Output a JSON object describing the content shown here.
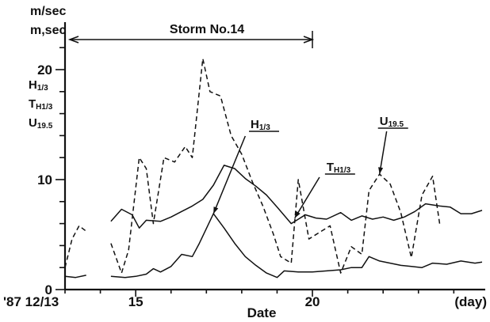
{
  "chart_data": {
    "type": "line",
    "title": "",
    "xlabel": "Date",
    "ylabel_lines": [
      "m/sec",
      "m,sec"
    ],
    "y_quantities": [
      {
        "main": "H",
        "sub": "1/3"
      },
      {
        "main": "T",
        "sub": "H1/3"
      },
      {
        "main": "U",
        "sub": "19.5"
      }
    ],
    "xlim": [
      13,
      24.8
    ],
    "ylim": [
      0,
      23
    ],
    "x_ticks": [
      {
        "value": 13,
        "label": "'87 12/13"
      },
      {
        "value": 15,
        "label": "15"
      },
      {
        "value": 20,
        "label": "20"
      },
      {
        "value": 24.8,
        "label": "(day)"
      }
    ],
    "y_ticks": [
      {
        "value": 0,
        "label": "0"
      },
      {
        "value": 10,
        "label": "10"
      },
      {
        "value": 20,
        "label": "20"
      }
    ],
    "span_annotation": {
      "label": "Storm No.14",
      "from": 13,
      "to": 20
    },
    "series": [
      {
        "name": "H1/3",
        "style": "solid",
        "segments": [
          [
            [
              13.0,
              1.2
            ],
            [
              13.3,
              1.1
            ],
            [
              13.6,
              1.3
            ]
          ],
          [
            [
              14.3,
              1.2
            ],
            [
              14.7,
              1.1
            ],
            [
              15.0,
              1.2
            ],
            [
              15.3,
              1.4
            ],
            [
              15.5,
              1.9
            ],
            [
              15.7,
              1.6
            ],
            [
              16.0,
              2.1
            ],
            [
              16.3,
              3.2
            ],
            [
              16.6,
              3.0
            ],
            [
              16.8,
              4.2
            ],
            [
              17.2,
              6.9
            ],
            [
              17.5,
              5.6
            ],
            [
              17.8,
              4.2
            ],
            [
              18.1,
              3.0
            ],
            [
              18.4,
              2.2
            ],
            [
              18.7,
              1.5
            ],
            [
              19.0,
              1.1
            ],
            [
              19.2,
              1.7
            ],
            [
              19.6,
              1.6
            ],
            [
              20.0,
              1.6
            ],
            [
              20.4,
              1.7
            ],
            [
              20.8,
              1.8
            ],
            [
              21.1,
              2.0
            ],
            [
              21.4,
              2.0
            ],
            [
              21.6,
              3.0
            ],
            [
              21.9,
              2.6
            ],
            [
              22.2,
              2.4
            ],
            [
              22.5,
              2.2
            ],
            [
              22.8,
              2.1
            ],
            [
              23.1,
              2.0
            ],
            [
              23.4,
              2.4
            ],
            [
              23.8,
              2.3
            ],
            [
              24.2,
              2.6
            ],
            [
              24.6,
              2.4
            ],
            [
              24.8,
              2.5
            ]
          ]
        ]
      },
      {
        "name": "TH1/3",
        "style": "solid",
        "segments": [
          [
            [
              14.3,
              6.2
            ],
            [
              14.6,
              7.3
            ],
            [
              14.9,
              6.8
            ],
            [
              15.1,
              5.6
            ],
            [
              15.3,
              6.3
            ],
            [
              15.7,
              6.2
            ],
            [
              16.0,
              6.6
            ],
            [
              16.3,
              7.1
            ],
            [
              16.6,
              7.6
            ],
            [
              16.9,
              8.2
            ],
            [
              17.2,
              9.5
            ],
            [
              17.5,
              11.3
            ],
            [
              17.8,
              11.0
            ],
            [
              18.1,
              10.1
            ],
            [
              18.4,
              9.4
            ],
            [
              18.7,
              8.6
            ],
            [
              19.0,
              7.5
            ],
            [
              19.4,
              6.0
            ],
            [
              19.8,
              6.8
            ],
            [
              20.1,
              6.5
            ],
            [
              20.4,
              6.4
            ],
            [
              20.8,
              7.0
            ],
            [
              21.1,
              6.3
            ],
            [
              21.4,
              6.7
            ],
            [
              21.7,
              6.4
            ],
            [
              22.0,
              6.6
            ],
            [
              22.3,
              6.3
            ],
            [
              22.6,
              6.6
            ],
            [
              22.9,
              7.1
            ],
            [
              23.2,
              7.8
            ],
            [
              23.6,
              7.6
            ],
            [
              23.9,
              7.5
            ],
            [
              24.2,
              6.9
            ],
            [
              24.5,
              6.9
            ],
            [
              24.8,
              7.2
            ]
          ]
        ]
      },
      {
        "name": "U19.5",
        "style": "dashed",
        "segments": [
          [
            [
              13.0,
              2.0
            ],
            [
              13.2,
              4.6
            ],
            [
              13.4,
              5.8
            ],
            [
              13.6,
              5.3
            ]
          ],
          [
            [
              14.3,
              4.2
            ],
            [
              14.6,
              1.5
            ],
            [
              14.8,
              3.6
            ],
            [
              15.1,
              12.0
            ],
            [
              15.3,
              11.0
            ],
            [
              15.5,
              6.0
            ],
            [
              15.8,
              12.0
            ],
            [
              16.1,
              11.6
            ],
            [
              16.4,
              13.0
            ],
            [
              16.6,
              12.0
            ],
            [
              16.9,
              21.0
            ],
            [
              17.1,
              18.0
            ],
            [
              17.4,
              17.6
            ],
            [
              17.7,
              14.0
            ],
            [
              18.0,
              12.3
            ],
            [
              18.3,
              9.8
            ],
            [
              18.6,
              7.6
            ],
            [
              18.9,
              5.0
            ],
            [
              19.1,
              3.0
            ],
            [
              19.4,
              2.4
            ],
            [
              19.6,
              10.0
            ],
            [
              19.9,
              4.6
            ],
            [
              20.2,
              5.2
            ],
            [
              20.5,
              5.8
            ],
            [
              20.8,
              1.5
            ],
            [
              21.1,
              3.9
            ],
            [
              21.4,
              3.2
            ],
            [
              21.6,
              9.0
            ],
            [
              21.9,
              10.5
            ],
            [
              22.2,
              9.6
            ],
            [
              22.5,
              7.0
            ],
            [
              22.8,
              2.9
            ],
            [
              23.1,
              8.6
            ],
            [
              23.4,
              10.3
            ],
            [
              23.6,
              6.0
            ]
          ]
        ]
      }
    ],
    "annotations": [
      {
        "label": "H1/3",
        "main": "H",
        "sub": "1/3",
        "target": [
          17.2,
          6.9
        ]
      },
      {
        "label": "TH1/3",
        "main": "T",
        "sub": "H1/3",
        "target": [
          19.5,
          6.5
        ]
      },
      {
        "label": "U19.5",
        "main": "U",
        "sub": "19.5",
        "target": [
          21.9,
          10.5
        ]
      }
    ],
    "grid": false,
    "legend": "none"
  }
}
